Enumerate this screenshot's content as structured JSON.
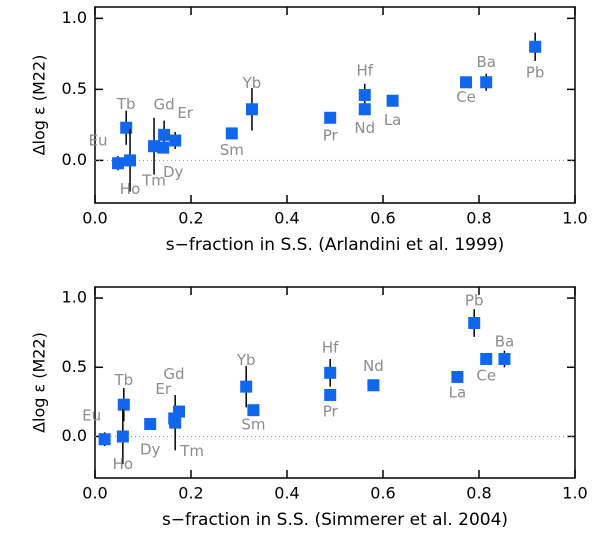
{
  "chart_data": [
    {
      "type": "scatter",
      "x_label": "s−fraction in S.S. (Arlandini et al. 1999)",
      "y_label": "Δlog ε (M22)",
      "point_labels": [
        "Eu",
        "Tb",
        "Ho",
        "Tm",
        "Gd",
        "Dy",
        "Er",
        "Sm",
        "Yb",
        "Pr",
        "Hf",
        "Nd",
        "La",
        "Ce",
        "Ba",
        "Pb"
      ],
      "x": [
        0.048,
        0.065,
        0.073,
        0.123,
        0.144,
        0.142,
        0.167,
        0.285,
        0.327,
        0.49,
        0.562,
        0.562,
        0.62,
        0.773,
        0.815,
        0.917
      ],
      "values": [
        -0.02,
        0.23,
        0.0,
        0.1,
        0.18,
        0.09,
        0.14,
        0.19,
        0.36,
        0.3,
        0.46,
        0.36,
        0.42,
        0.55,
        0.55,
        0.8
      ],
      "errors": [
        0.05,
        0.12,
        0.22,
        0.2,
        0.1,
        null,
        0.06,
        null,
        0.15,
        null,
        0.08,
        null,
        null,
        null,
        0.06,
        0.1
      ],
      "color": "#1166ee",
      "xlim": [
        0,
        1.0
      ],
      "ylim": [
        -0.3,
        1.08
      ],
      "xticks": [
        {
          "value": 0,
          "label": "0.0"
        },
        {
          "value": 0.2,
          "label": "0.2"
        },
        {
          "value": 0.4,
          "label": "0.4"
        },
        {
          "value": 0.6,
          "label": "0.6"
        },
        {
          "value": 0.8,
          "label": "0.8"
        },
        {
          "value": 1.0,
          "label": "1.0"
        }
      ],
      "yticks": [
        {
          "value": 0,
          "label": "0.0"
        },
        {
          "value": 0.5,
          "label": "0.5"
        },
        {
          "value": 1.0,
          "label": "1.0"
        }
      ],
      "hline": 0
    },
    {
      "type": "scatter",
      "x_label": "s−fraction in S.S. (Simmerer et al. 2004)",
      "y_label": "Δlog ε (M22)",
      "point_labels": [
        "Eu",
        "Tb",
        "Ho",
        "Dy",
        "Er",
        "Tm",
        "Gd",
        "Yb",
        "Sm",
        "Hf",
        "Pr",
        "Nd",
        "La",
        "Pb",
        "Ce",
        "Ba"
      ],
      "x": [
        0.02,
        0.06,
        0.058,
        0.115,
        0.165,
        0.167,
        0.175,
        0.315,
        0.33,
        0.49,
        0.49,
        0.58,
        0.755,
        0.79,
        0.815,
        0.853
      ],
      "values": [
        -0.02,
        0.23,
        0.0,
        0.09,
        0.13,
        0.1,
        0.18,
        0.36,
        0.19,
        0.46,
        0.3,
        0.37,
        0.43,
        0.82,
        0.56,
        0.56
      ],
      "errors": [
        0.05,
        0.12,
        0.2,
        0.04,
        0.06,
        0.2,
        null,
        0.15,
        null,
        0.1,
        null,
        null,
        null,
        0.1,
        null,
        0.06
      ],
      "color": "#1166ee",
      "xlim": [
        0,
        1.0
      ],
      "ylim": [
        -0.3,
        1.08
      ],
      "xticks": [
        {
          "value": 0,
          "label": "0.0"
        },
        {
          "value": 0.2,
          "label": "0.2"
        },
        {
          "value": 0.4,
          "label": "0.4"
        },
        {
          "value": 0.6,
          "label": "0.6"
        },
        {
          "value": 0.8,
          "label": "0.8"
        },
        {
          "value": 1.0,
          "label": "1.0"
        }
      ],
      "yticks": [
        {
          "value": 0,
          "label": "0.0"
        },
        {
          "value": 0.5,
          "label": "0.5"
        },
        {
          "value": 1.0,
          "label": "1.0"
        }
      ],
      "hline": 0
    }
  ]
}
